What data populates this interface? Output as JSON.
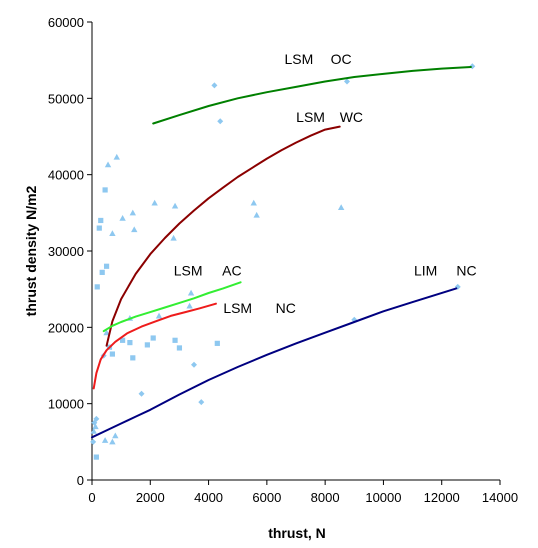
{
  "chart_data": {
    "type": "scatter",
    "title": "",
    "xlabel": "thrust, N",
    "ylabel": "thrust density N/m2",
    "xlim": [
      0,
      14000
    ],
    "ylim": [
      0,
      60000
    ],
    "xticks": [
      "0",
      "2000",
      "4000",
      "6000",
      "8000",
      "10000",
      "12000",
      "14000"
    ],
    "yticks": [
      "0",
      "10000",
      "20000",
      "30000",
      "40000",
      "50000",
      "60000"
    ],
    "grid": false,
    "legend": "none",
    "point_color": "#8ec8f0",
    "scatter_diamonds": [
      {
        "x": 40,
        "y": 5000
      },
      {
        "x": 80,
        "y": 7500
      },
      {
        "x": 150,
        "y": 8000
      },
      {
        "x": 400,
        "y": 16300
      },
      {
        "x": 1700,
        "y": 11300
      },
      {
        "x": 3500,
        "y": 15100
      },
      {
        "x": 3750,
        "y": 10200
      },
      {
        "x": 4200,
        "y": 51700
      },
      {
        "x": 4400,
        "y": 47000
      },
      {
        "x": 8750,
        "y": 52200
      },
      {
        "x": 9000,
        "y": 21000
      },
      {
        "x": 12550,
        "y": 25300
      },
      {
        "x": 13050,
        "y": 54200
      }
    ],
    "scatter_squares": [
      {
        "x": 150,
        "y": 3000
      },
      {
        "x": 180,
        "y": 25300
      },
      {
        "x": 250,
        "y": 33000
      },
      {
        "x": 300,
        "y": 34000
      },
      {
        "x": 350,
        "y": 27200
      },
      {
        "x": 450,
        "y": 38000
      },
      {
        "x": 500,
        "y": 28000
      },
      {
        "x": 600,
        "y": 17400
      },
      {
        "x": 700,
        "y": 16500
      },
      {
        "x": 1050,
        "y": 18300
      },
      {
        "x": 1300,
        "y": 18000
      },
      {
        "x": 1400,
        "y": 16000
      },
      {
        "x": 1900,
        "y": 17700
      },
      {
        "x": 2100,
        "y": 18600
      },
      {
        "x": 2850,
        "y": 18300
      },
      {
        "x": 3000,
        "y": 17300
      },
      {
        "x": 4300,
        "y": 17900
      }
    ],
    "scatter_triangles": [
      {
        "x": 60,
        "y": 6400
      },
      {
        "x": 120,
        "y": 7000
      },
      {
        "x": 450,
        "y": 5200
      },
      {
        "x": 500,
        "y": 19300
      },
      {
        "x": 550,
        "y": 41300
      },
      {
        "x": 700,
        "y": 32300
      },
      {
        "x": 700,
        "y": 5000
      },
      {
        "x": 800,
        "y": 5800
      },
      {
        "x": 850,
        "y": 42300
      },
      {
        "x": 1050,
        "y": 34300
      },
      {
        "x": 1300,
        "y": 21200
      },
      {
        "x": 1400,
        "y": 35000
      },
      {
        "x": 1450,
        "y": 32800
      },
      {
        "x": 2150,
        "y": 36300
      },
      {
        "x": 2300,
        "y": 21500
      },
      {
        "x": 2800,
        "y": 31700
      },
      {
        "x": 2850,
        "y": 35900
      },
      {
        "x": 3400,
        "y": 24500
      },
      {
        "x": 3350,
        "y": 22800
      },
      {
        "x": 5550,
        "y": 36300
      },
      {
        "x": 5650,
        "y": 34700
      },
      {
        "x": 8550,
        "y": 35700
      }
    ],
    "series": [
      {
        "name": "LSM OC",
        "color": "#008000",
        "x": [
          2100,
          3000,
          4000,
          5000,
          6000,
          7000,
          8000,
          9000,
          10000,
          11000,
          12000,
          13000
        ],
        "y": [
          46700,
          47800,
          49000,
          50000,
          50800,
          51500,
          52200,
          52800,
          53200,
          53600,
          53900,
          54100
        ]
      },
      {
        "name": "LSM WC",
        "color": "#8b0000",
        "x": [
          500,
          700,
          1000,
          1500,
          2000,
          2500,
          3000,
          3500,
          4000,
          4500,
          5000,
          5500,
          6000,
          6500,
          7000,
          7500,
          8000,
          8500
        ],
        "y": [
          17600,
          20800,
          23700,
          27000,
          29600,
          31700,
          33600,
          35300,
          36900,
          38300,
          39700,
          40900,
          42100,
          43200,
          44200,
          45100,
          45900,
          46300
        ]
      },
      {
        "name": "LSM AC",
        "color": "#33ee33",
        "x": [
          400,
          700,
          1000,
          1500,
          2000,
          2500,
          3000,
          3500,
          4000,
          4500,
          5100
        ],
        "y": [
          19500,
          20200,
          20700,
          21400,
          22000,
          22600,
          23200,
          23800,
          24500,
          25100,
          25900
        ]
      },
      {
        "name": "LSM NC",
        "color": "#ee1c1c",
        "x": [
          60,
          150,
          300,
          500,
          800,
          1200,
          1700,
          2200,
          2700,
          3200,
          3700,
          4250
        ],
        "y": [
          12000,
          14000,
          15800,
          17000,
          18100,
          19200,
          20100,
          20800,
          21500,
          22000,
          22500,
          23100
        ]
      },
      {
        "name": "LIM NC",
        "color": "#000080",
        "x": [
          0,
          500,
          1000,
          1500,
          2000,
          3000,
          4000,
          5000,
          6000,
          7000,
          8000,
          9000,
          10000,
          11000,
          12500
        ],
        "y": [
          5600,
          6500,
          7400,
          8300,
          9200,
          11200,
          13100,
          14800,
          16400,
          17900,
          19300,
          20700,
          22100,
          23300,
          25100
        ]
      }
    ],
    "annotations": [
      {
        "id": "lsm-oc-lsm",
        "text": "LSM",
        "x": 7100,
        "y": 54500
      },
      {
        "id": "lsm-oc-oc",
        "text": "OC",
        "x": 8550,
        "y": 54500
      },
      {
        "id": "lsm-wc-lsm",
        "text": "LSM",
        "x": 7500,
        "y": 46900
      },
      {
        "id": "lsm-wc-wc",
        "text": "WC",
        "x": 8900,
        "y": 46900
      },
      {
        "id": "lsm-ac-lsm",
        "text": "LSM",
        "x": 3300,
        "y": 26800
      },
      {
        "id": "lsm-ac-ac",
        "text": "AC",
        "x": 4800,
        "y": 26800
      },
      {
        "id": "lsm-nc-lsm",
        "text": "LSM",
        "x": 5000,
        "y": 21900
      },
      {
        "id": "lsm-nc-nc",
        "text": "NC",
        "x": 6650,
        "y": 21900
      },
      {
        "id": "lim-nc-lim",
        "text": "LIM",
        "x": 11450,
        "y": 26800
      },
      {
        "id": "lim-nc-nc",
        "text": "NC",
        "x": 12850,
        "y": 26800
      }
    ]
  }
}
